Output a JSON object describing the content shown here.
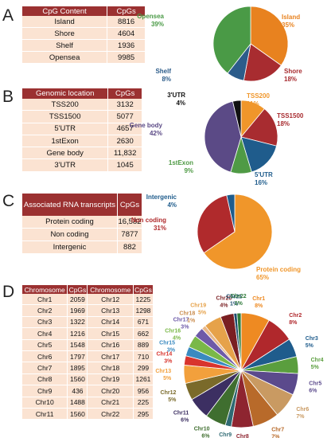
{
  "chart_data": [
    {
      "type": "pie",
      "panel": "A",
      "table": {
        "headers": [
          "CpG Content",
          "CpGs"
        ],
        "rows": [
          [
            "Island",
            "8816"
          ],
          [
            "Shore",
            "4604"
          ],
          [
            "Shelf",
            "1936"
          ],
          [
            "Opensea",
            "9985"
          ]
        ]
      },
      "series": [
        {
          "values": [
            8816,
            4604,
            1936,
            9985
          ]
        }
      ],
      "labels": [
        {
          "name": "Island",
          "pct": "35%",
          "color": "#e8821f"
        },
        {
          "name": "Shore",
          "pct": "18%",
          "color": "#a82c30"
        },
        {
          "name": "Shelf",
          "pct": "8%",
          "color": "#2c5c8a"
        },
        {
          "name": "Opensea",
          "pct": "39%",
          "color": "#4a9a46"
        }
      ]
    },
    {
      "type": "pie",
      "panel": "B",
      "table": {
        "headers": [
          "Genomic location",
          "CpGs"
        ],
        "rows": [
          [
            "TSS200",
            "3132"
          ],
          [
            "TSS1500",
            "5077"
          ],
          [
            "5'UTR",
            "4657"
          ],
          [
            "1stExon",
            "2630"
          ],
          [
            "Gene body",
            "11,832"
          ],
          [
            "3'UTR",
            "1045"
          ]
        ]
      },
      "series": [
        {
          "values": [
            3132,
            5077,
            4657,
            2630,
            11832,
            1045
          ]
        }
      ],
      "labels": [
        {
          "name": "TSS200",
          "pct": "11%",
          "color": "#f0962a"
        },
        {
          "name": "TSS1500",
          "pct": "18%",
          "color": "#a82c30"
        },
        {
          "name": "5'UTR",
          "pct": "16%",
          "color": "#1f5c8c"
        },
        {
          "name": "1stExon",
          "pct": "9%",
          "color": "#4f9a45"
        },
        {
          "name": "Gene body",
          "pct": "42%",
          "color": "#5b4a86"
        },
        {
          "name": "3'UTR",
          "pct": "4%",
          "color": "#111111"
        }
      ]
    },
    {
      "type": "pie",
      "panel": "C",
      "table": {
        "headers": [
          "Associated RNA transcripts",
          "CpGs"
        ],
        "rows": [
          [
            "Protein coding",
            "16,582"
          ],
          [
            "Non coding",
            "7877"
          ],
          [
            "Intergenic",
            "882"
          ]
        ]
      },
      "series": [
        {
          "values": [
            16582,
            7877,
            882
          ]
        }
      ],
      "labels": [
        {
          "name": "Protein coding",
          "pct": "65%",
          "color": "#f0962a"
        },
        {
          "name": "Non coding",
          "pct": "31%",
          "color": "#b02a2c"
        },
        {
          "name": "Intergenic",
          "pct": "4%",
          "color": "#1f5c8c"
        }
      ]
    },
    {
      "type": "pie",
      "panel": "D",
      "table": {
        "headers": [
          "Chromosome",
          "CpGs",
          "Chromosome",
          "CpGs"
        ],
        "rows": [
          [
            "Chr1",
            "2059",
            "Chr12",
            "1225"
          ],
          [
            "Chr2",
            "1969",
            "Chr13",
            "1298"
          ],
          [
            "Chr3",
            "1322",
            "Chr14",
            "671"
          ],
          [
            "Chr4",
            "1216",
            "Chr15",
            "662"
          ],
          [
            "Chr5",
            "1548",
            "Chr16",
            "889"
          ],
          [
            "Chr6",
            "1797",
            "Chr17",
            "710"
          ],
          [
            "Chr7",
            "1895",
            "Chr18",
            "299"
          ],
          [
            "Chr8",
            "1560",
            "Chr19",
            "1261"
          ],
          [
            "Chr9",
            "436",
            "Chr20",
            "956"
          ],
          [
            "Chr10",
            "1488",
            "Chr21",
            "225"
          ],
          [
            "Chr11",
            "1560",
            "Chr22",
            "295"
          ]
        ]
      },
      "series": [
        {
          "values": [
            2059,
            1969,
            1322,
            1216,
            1548,
            1797,
            1895,
            1560,
            436,
            1488,
            1560,
            1225,
            1298,
            671,
            662,
            889,
            710,
            299,
            1261,
            956,
            225,
            295
          ]
        }
      ],
      "labels": [
        {
          "name": "Chr1",
          "pct": "8%",
          "color": "#ee8a22"
        },
        {
          "name": "Chr2",
          "pct": "8%",
          "color": "#b0282c"
        },
        {
          "name": "Chr3",
          "pct": "5%",
          "color": "#1f5c8c"
        },
        {
          "name": "Chr4",
          "pct": "5%",
          "color": "#5a9e3e"
        },
        {
          "name": "Chr5",
          "pct": "6%",
          "color": "#5b4a8c"
        },
        {
          "name": "Chr6",
          "pct": "7%",
          "color": "#c99a62"
        },
        {
          "name": "Chr7",
          "pct": "7%",
          "color": "#b86a2a"
        },
        {
          "name": "Chr8",
          "pct": "6%",
          "color": "#8e2530"
        },
        {
          "name": "Chr9",
          "pct": "2%",
          "color": "#2f6a73"
        },
        {
          "name": "Chr10",
          "pct": "6%",
          "color": "#3f6e2f"
        },
        {
          "name": "Chr11",
          "pct": "6%",
          "color": "#3c2f62"
        },
        {
          "name": "Chr12",
          "pct": "5%",
          "color": "#7a6a2a"
        },
        {
          "name": "Chr13",
          "pct": "5%",
          "color": "#f2a03c"
        },
        {
          "name": "Chr14",
          "pct": "3%",
          "color": "#d8342d"
        },
        {
          "name": "Chr15",
          "pct": "3%",
          "color": "#3a8ac0"
        },
        {
          "name": "Chr16",
          "pct": "4%",
          "color": "#7ab848"
        },
        {
          "name": "Chr17",
          "pct": "3%",
          "color": "#6e5aa8"
        },
        {
          "name": "Chr18",
          "pct": "1%",
          "color": "#e8b888"
        },
        {
          "name": "Chr19",
          "pct": "5%",
          "color": "#e6a24a"
        },
        {
          "name": "Chr20",
          "pct": "4%",
          "color": "#7a1f22"
        },
        {
          "name": "Chr21",
          "pct": "1%",
          "color": "#1c4d6e"
        },
        {
          "name": "Chr22",
          "pct": "1%",
          "color": "#2f7a3a"
        }
      ]
    }
  ]
}
